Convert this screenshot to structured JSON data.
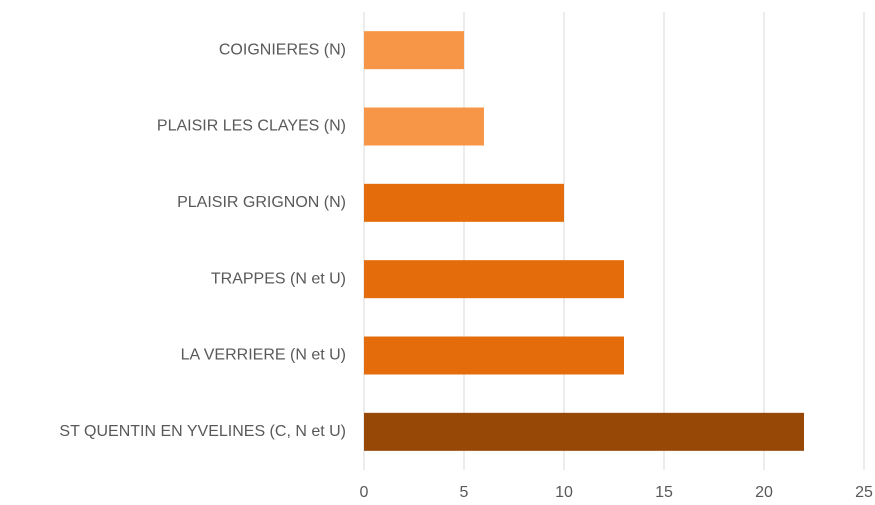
{
  "chart_data": {
    "type": "barh",
    "categories": [
      "COIGNIERES (N)",
      "PLAISIR LES CLAYES (N)",
      "PLAISIR GRIGNON (N)",
      "TRAPPES (N et U)",
      "LA VERRIERE (N et U)",
      "ST QUENTIN EN YVELINES (C, N et U)"
    ],
    "values": [
      5,
      6,
      10,
      13,
      13,
      22
    ],
    "colors": [
      "#f79646",
      "#f79646",
      "#e46c0a",
      "#e46c0a",
      "#e46c0a",
      "#974706"
    ],
    "xlim": [
      0,
      25
    ],
    "xticks": [
      0,
      5,
      10,
      15,
      20,
      25
    ],
    "grid": true
  }
}
